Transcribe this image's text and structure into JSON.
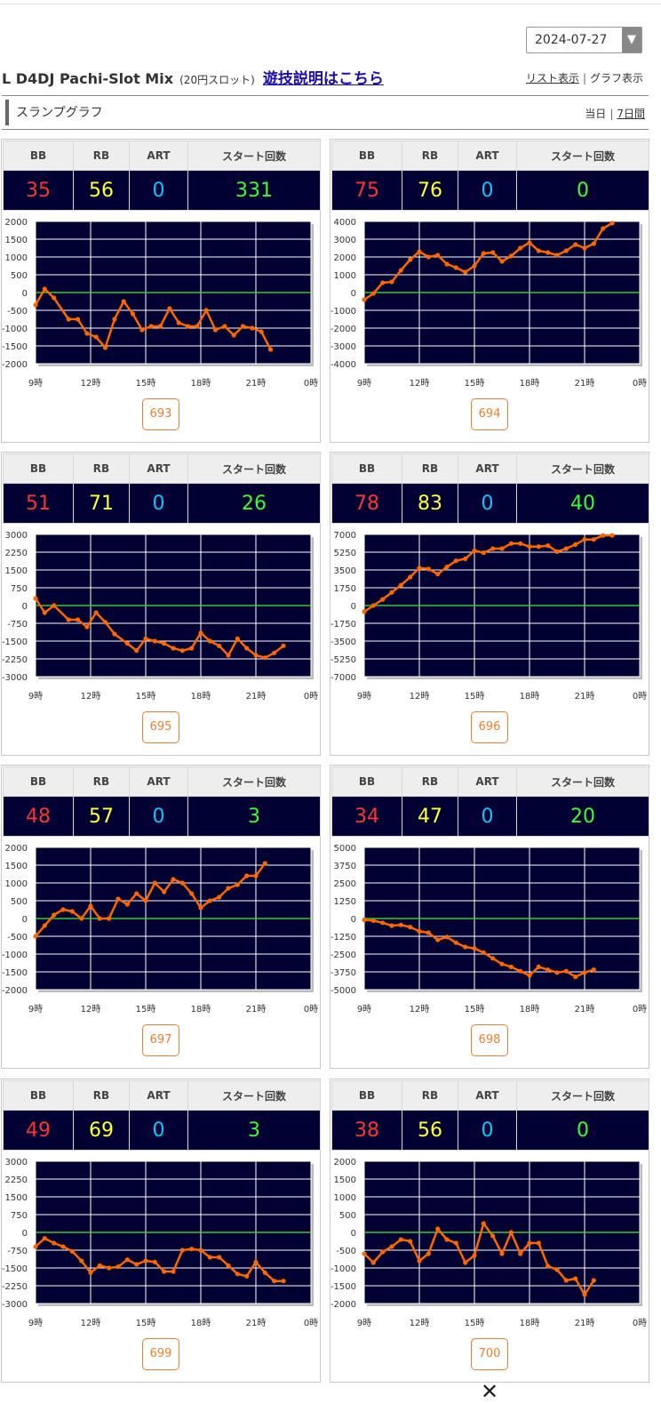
{
  "header": {
    "date_value": "2024-07-27",
    "dropdown_arrow": "▼",
    "title": "L D4DJ Pachi-Slot Mix",
    "subtitle": "(20円スロット)",
    "rules_link": "遊技説明はこちら",
    "list_view": "リスト表示",
    "graph_view": "グラフ表示",
    "separator": "|"
  },
  "section": {
    "label": "スランプグラフ",
    "today": "当日",
    "seven_days": "7日間",
    "separator": "|"
  },
  "columns": [
    "BB",
    "RB",
    "ART",
    "スタート回数"
  ],
  "colors": {
    "bb": "#ff3333",
    "rb": "#ffff33",
    "art": "#00ccff",
    "start": "#33ff33",
    "line": "#ff6600",
    "zero_line": "#33cc33",
    "plot_bg": "#000033"
  },
  "close_icon": "close-icon",
  "close_glyph": "✕",
  "chart_data": [
    {
      "type": "line",
      "machine": "693",
      "stats": {
        "bb": "35",
        "rb": "56",
        "art": "0",
        "start": "331"
      },
      "x_ticks": [
        "9時",
        "12時",
        "15時",
        "18時",
        "21時",
        "0時"
      ],
      "xlim": [
        9,
        24
      ],
      "y_ticks": [
        "2000",
        "1500",
        "1000",
        "500",
        "0",
        "-500",
        "-1000",
        "-1500",
        "-2000"
      ],
      "ylim": [
        -2000,
        2000
      ],
      "x": [
        9,
        9.5,
        10,
        10.8,
        11.3,
        11.8,
        12.3,
        12.8,
        13.3,
        13.8,
        14.3,
        14.8,
        15.3,
        15.8,
        16.3,
        16.8,
        17.3,
        17.8,
        18.3,
        18.8,
        19.3,
        19.8,
        20.3,
        20.8,
        21.3,
        21.8,
        22.3
      ],
      "y": [
        -350,
        100,
        -150,
        -750,
        -750,
        -1150,
        -1250,
        -1550,
        -750,
        -250,
        -600,
        -1050,
        -950,
        -950,
        -450,
        -850,
        -950,
        -950,
        -500,
        -1050,
        -950,
        -1200,
        -950,
        -1000,
        -1100,
        -1600,
        null
      ]
    },
    {
      "type": "line",
      "machine": "694",
      "stats": {
        "bb": "75",
        "rb": "76",
        "art": "0",
        "start": "0"
      },
      "x_ticks": [
        "9時",
        "12時",
        "15時",
        "18時",
        "21時",
        "0時"
      ],
      "xlim": [
        9,
        24
      ],
      "y_ticks": [
        "4000",
        "3000",
        "2000",
        "1000",
        "0",
        "-1000",
        "-2000",
        "-3000",
        "-4000"
      ],
      "ylim": [
        -4000,
        4000
      ],
      "x": [
        9,
        9.5,
        10,
        10.5,
        11,
        11.5,
        12,
        12.5,
        13,
        13.5,
        14,
        14.5,
        15,
        15.5,
        16,
        16.5,
        17,
        17.5,
        18,
        18.5,
        19,
        19.5,
        20,
        20.5,
        21,
        21.5,
        22,
        22.5,
        23
      ],
      "y": [
        -400,
        -50,
        550,
        600,
        1250,
        1850,
        2300,
        2000,
        2100,
        1600,
        1400,
        1150,
        1500,
        2200,
        2250,
        1750,
        2050,
        2500,
        2800,
        2350,
        2250,
        2100,
        2350,
        2700,
        2500,
        2750,
        3600,
        3900,
        null
      ]
    },
    {
      "type": "line",
      "machine": "695",
      "stats": {
        "bb": "51",
        "rb": "71",
        "art": "0",
        "start": "26"
      },
      "x_ticks": [
        "9時",
        "12時",
        "15時",
        "18時",
        "21時",
        "0時"
      ],
      "xlim": [
        9,
        24
      ],
      "y_ticks": [
        "3000",
        "2250",
        "1500",
        "750",
        "0",
        "-750",
        "-1500",
        "-2250",
        "-3000"
      ],
      "ylim": [
        -3000,
        3000
      ],
      "x": [
        9,
        9.5,
        10,
        10.8,
        11.3,
        11.8,
        12.3,
        12.8,
        13.3,
        14,
        14.5,
        15,
        15.5,
        16,
        16.5,
        17,
        17.5,
        18,
        18.5,
        19,
        19.5,
        20,
        20.5,
        21,
        21.5,
        22,
        22.5
      ],
      "y": [
        300,
        -300,
        0,
        -600,
        -600,
        -900,
        -300,
        -700,
        -1200,
        -1600,
        -1900,
        -1400,
        -1500,
        -1600,
        -1800,
        -1900,
        -1800,
        -1150,
        -1500,
        -1700,
        -2100,
        -1400,
        -1800,
        -2100,
        -2200,
        -2000,
        -1700
      ]
    },
    {
      "type": "line",
      "machine": "696",
      "stats": {
        "bb": "78",
        "rb": "83",
        "art": "0",
        "start": "40"
      },
      "x_ticks": [
        "9時",
        "12時",
        "15時",
        "18時",
        "21時",
        "0時"
      ],
      "xlim": [
        9,
        24
      ],
      "y_ticks": [
        "7000",
        "5250",
        "3500",
        "1750",
        "0",
        "-1750",
        "-3500",
        "-5250",
        "-7000"
      ],
      "ylim": [
        -7000,
        7000
      ],
      "x": [
        9,
        9.5,
        10,
        10.5,
        11,
        11.5,
        12,
        12.5,
        13,
        13.5,
        14,
        14.5,
        15,
        15.5,
        16,
        16.5,
        17,
        17.5,
        18,
        18.5,
        19,
        19.5,
        20,
        20.5,
        21,
        21.5,
        22,
        22.5,
        23
      ],
      "y": [
        -600,
        0,
        600,
        1300,
        2000,
        2800,
        3700,
        3600,
        3100,
        3800,
        4400,
        4600,
        5400,
        5200,
        5600,
        5600,
        6100,
        6100,
        5800,
        5800,
        5900,
        5300,
        5600,
        6000,
        6500,
        6500,
        6900,
        6900,
        null
      ]
    },
    {
      "type": "line",
      "machine": "697",
      "stats": {
        "bb": "48",
        "rb": "57",
        "art": "0",
        "start": "3"
      },
      "x_ticks": [
        "9時",
        "12時",
        "15時",
        "18時",
        "21時",
        "0時"
      ],
      "xlim": [
        9,
        24
      ],
      "y_ticks": [
        "2000",
        "1500",
        "1000",
        "500",
        "0",
        "-500",
        "-1000",
        "-1500",
        "-2000"
      ],
      "ylim": [
        -2000,
        2000
      ],
      "x": [
        9,
        9.5,
        10,
        10.5,
        11,
        11.5,
        12,
        12.5,
        13,
        13.5,
        14,
        14.5,
        15,
        15.5,
        16,
        16.5,
        17,
        17.5,
        18,
        18.5,
        19,
        19.5,
        20,
        20.5,
        21,
        21.5,
        22
      ],
      "y": [
        -500,
        -200,
        100,
        250,
        200,
        0,
        350,
        0,
        0,
        550,
        400,
        700,
        500,
        1000,
        750,
        1100,
        1000,
        700,
        300,
        500,
        600,
        850,
        950,
        1200,
        1200,
        1550,
        null
      ]
    },
    {
      "type": "line",
      "machine": "698",
      "stats": {
        "bb": "34",
        "rb": "47",
        "art": "0",
        "start": "20"
      },
      "x_ticks": [
        "9時",
        "12時",
        "15時",
        "18時",
        "21時",
        "0時"
      ],
      "xlim": [
        9,
        24
      ],
      "y_ticks": [
        "5000",
        "3750",
        "2500",
        "1250",
        "0",
        "-1250",
        "-2500",
        "-3750",
        "-5000"
      ],
      "ylim": [
        -5000,
        5000
      ],
      "x": [
        9,
        9.5,
        10,
        10.5,
        11,
        11.5,
        12,
        12.5,
        13,
        13.5,
        14,
        14.5,
        15,
        15.5,
        16,
        16.5,
        17,
        17.5,
        18,
        18.5,
        19,
        19.5,
        20,
        20.5,
        21,
        21.5,
        22
      ],
      "y": [
        -100,
        -150,
        -300,
        -500,
        -450,
        -600,
        -900,
        -1000,
        -1500,
        -1300,
        -1700,
        -2000,
        -2100,
        -2400,
        -2800,
        -3200,
        -3400,
        -3700,
        -4000,
        -3400,
        -3600,
        -3800,
        -3700,
        -4100,
        -3800,
        -3600,
        null
      ]
    },
    {
      "type": "line",
      "machine": "699",
      "stats": {
        "bb": "49",
        "rb": "69",
        "art": "0",
        "start": "3"
      },
      "x_ticks": [
        "9時",
        "12時",
        "15時",
        "18時",
        "21時",
        "0時"
      ],
      "xlim": [
        9,
        24
      ],
      "y_ticks": [
        "3000",
        "2250",
        "1500",
        "750",
        "0",
        "-750",
        "-1500",
        "-2250",
        "-3000"
      ],
      "ylim": [
        -3000,
        3000
      ],
      "x": [
        9,
        9.5,
        10,
        10.5,
        11,
        11.5,
        12,
        12.5,
        13,
        13.5,
        14,
        14.5,
        15,
        15.5,
        16,
        16.5,
        17,
        17.5,
        18,
        18.5,
        19,
        19.5,
        20,
        20.5,
        21,
        21.5,
        22,
        22.5
      ],
      "y": [
        -600,
        -250,
        -450,
        -600,
        -800,
        -1200,
        -1700,
        -1400,
        -1500,
        -1450,
        -1150,
        -1350,
        -1200,
        -1250,
        -1650,
        -1650,
        -750,
        -700,
        -750,
        -1050,
        -1050,
        -1400,
        -1750,
        -1850,
        -1250,
        -1700,
        -2050,
        -2050
      ]
    },
    {
      "type": "line",
      "machine": "700",
      "stats": {
        "bb": "38",
        "rb": "56",
        "art": "0",
        "start": "0"
      },
      "x_ticks": [
        "9時",
        "12時",
        "15時",
        "18時",
        "21時",
        "0時"
      ],
      "xlim": [
        9,
        24
      ],
      "y_ticks": [
        "2000",
        "1500",
        "1000",
        "500",
        "0",
        "-500",
        "-1000",
        "-1500",
        "-2000"
      ],
      "ylim": [
        -2000,
        2000
      ],
      "x": [
        9,
        9.5,
        10,
        10.5,
        11,
        11.5,
        12,
        12.5,
        13,
        13.5,
        14,
        14.5,
        15,
        15.5,
        16,
        16.5,
        17,
        17.5,
        18,
        18.5,
        19,
        19.5,
        20,
        20.5,
        21,
        21.5,
        22
      ],
      "y": [
        -600,
        -850,
        -550,
        -400,
        -200,
        -250,
        -800,
        -600,
        100,
        -200,
        -300,
        -850,
        -650,
        250,
        -100,
        -600,
        0,
        -600,
        -300,
        -300,
        -950,
        -1050,
        -1350,
        -1300,
        -1750,
        -1350,
        null
      ]
    }
  ]
}
